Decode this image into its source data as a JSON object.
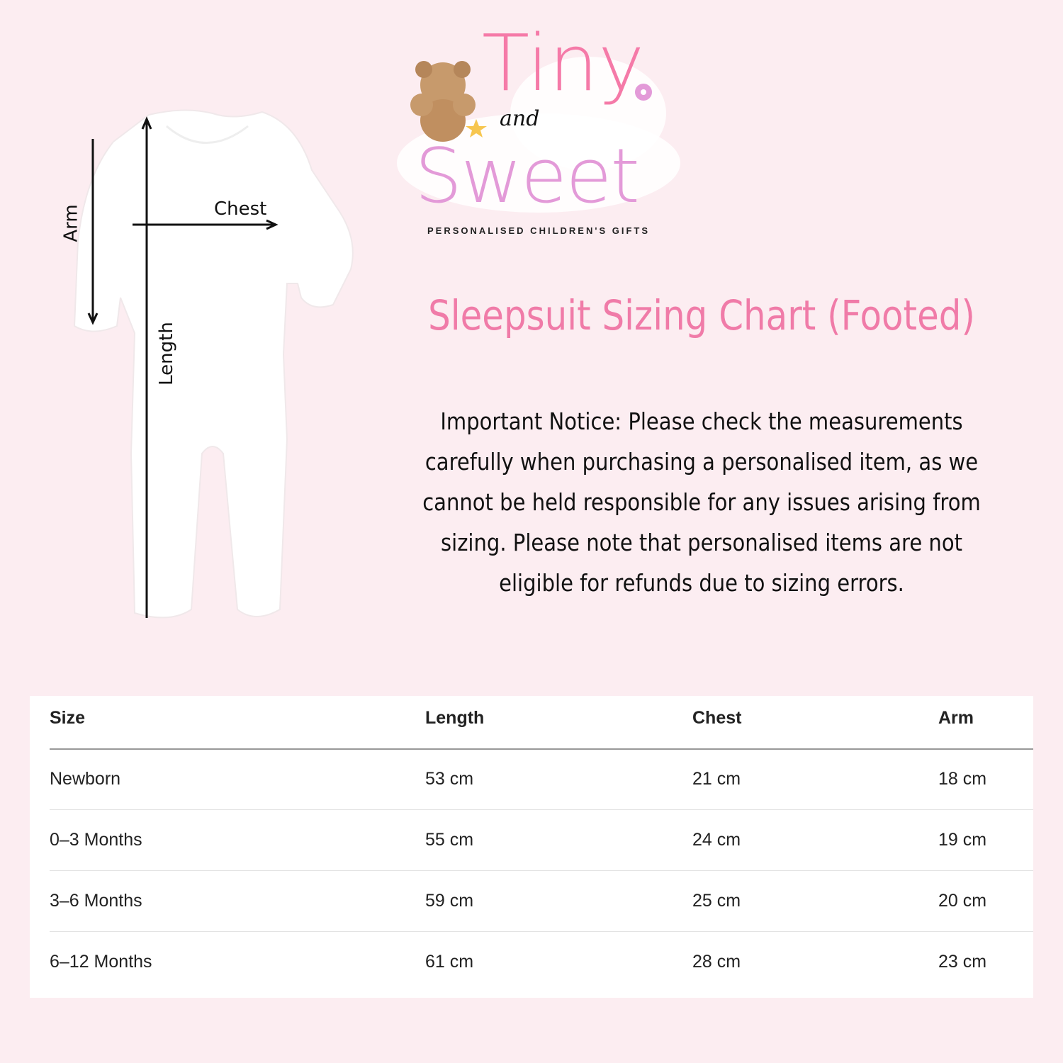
{
  "logo": {
    "word1": "Tiny",
    "word2": "and",
    "word3": "Sweet",
    "tagline": "PERSONALISED CHILDREN'S GIFTS",
    "colors": [
      "#f57aa8",
      "#f7a56a",
      "#f7c64f",
      "#7fd3cf",
      "#e39ad8",
      "#f5a3c0"
    ]
  },
  "diagram": {
    "arm_label": "Arm",
    "chest_label": "Chest",
    "length_label": "Length"
  },
  "title": "Sleepsuit Sizing Chart (Footed)",
  "notice": "Important Notice: Please check the measurements carefully when purchasing a personalised item, as we cannot be held responsible for any issues arising from sizing. Please note that personalised items are not eligible for refunds due to sizing errors.",
  "table": {
    "headers": [
      "Size",
      "Length",
      "Chest",
      "Arm"
    ],
    "rows": [
      [
        "Newborn",
        "53 cm",
        "21 cm",
        "18 cm"
      ],
      [
        "0–3 Months",
        "55 cm",
        "24 cm",
        "19 cm"
      ],
      [
        "3–6 Months",
        "59 cm",
        "25 cm",
        "20 cm"
      ],
      [
        "6–12 Months",
        "61 cm",
        "28 cm",
        "23 cm"
      ]
    ]
  },
  "colors": {
    "background": "#fcedf1",
    "title": "#f07ba8"
  }
}
